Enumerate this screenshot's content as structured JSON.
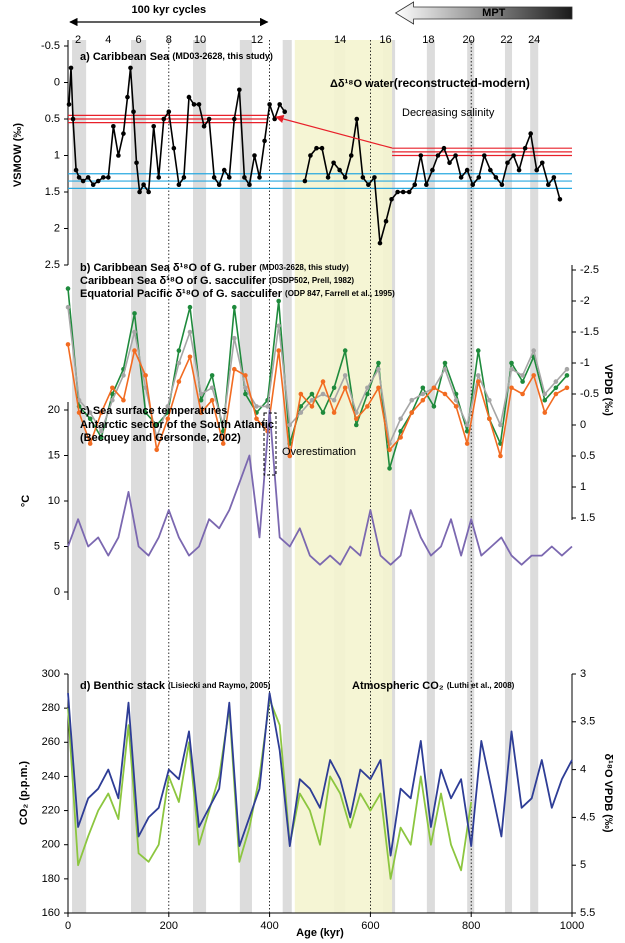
{
  "timescale": {
    "cycles_label": "100 kyr cycles",
    "cycles_range": [
      0,
      400
    ],
    "mpt_label": "MPT",
    "mpt_range": [
      650,
      1000
    ],
    "stages": [
      2,
      4,
      6,
      8,
      10,
      12,
      14,
      16,
      18,
      20,
      22,
      24
    ],
    "stage_ages": [
      20,
      80,
      140,
      200,
      262,
      375,
      540,
      630,
      715,
      795,
      870,
      925
    ],
    "glacial_bands": [
      [
        8,
        36
      ],
      [
        125,
        155
      ],
      [
        248,
        274
      ],
      [
        341,
        365
      ],
      [
        426,
        444
      ],
      [
        528,
        550
      ],
      [
        625,
        649
      ],
      [
        712,
        728
      ],
      [
        792,
        806
      ],
      [
        867,
        881
      ],
      [
        917,
        933
      ]
    ],
    "mpt_interval": [
      450,
      643
    ],
    "age_lines": [
      200,
      400,
      600,
      800
    ]
  },
  "chart_data": [
    {
      "type": "line",
      "panel": "a)",
      "title": "Caribbean Sea",
      "source": "(MD03-2628, this study)",
      "annotation": "Δδ¹⁸O water",
      "annotation_sub": "(reconstructed-modern)",
      "callout": "Decreasing salinity",
      "ylabel": "VSMOW (‰)",
      "ylim": [
        2.5,
        -0.5
      ],
      "yticks": [
        -0.5,
        0,
        0.5,
        1,
        1.5,
        2,
        2.5
      ],
      "color": "#000000",
      "markers": true,
      "x": [
        2,
        6,
        10,
        16,
        22,
        30,
        40,
        50,
        60,
        70,
        80,
        90,
        100,
        110,
        118,
        124,
        130,
        136,
        142,
        150,
        160,
        170,
        180,
        190,
        200,
        210,
        220,
        230,
        240,
        250,
        260,
        270,
        280,
        290,
        300,
        310,
        320,
        330,
        340,
        350,
        360,
        370,
        380,
        390,
        400,
        410,
        420,
        430,
        450,
        470,
        481,
        493,
        504,
        516,
        527,
        539,
        550,
        562,
        573,
        585,
        596,
        608,
        619,
        631,
        642,
        654,
        665,
        677,
        688,
        700,
        711,
        723,
        734,
        746,
        757,
        769,
        780,
        792,
        803,
        815,
        826,
        838,
        849,
        861,
        872,
        884,
        895,
        907,
        918,
        930,
        941,
        953,
        964,
        976
      ],
      "values": [
        0.3,
        -0.2,
        0.5,
        1.2,
        1.3,
        1.35,
        1.3,
        1.4,
        1.35,
        1.3,
        1.3,
        0.6,
        1.0,
        0.7,
        0.2,
        -0.2,
        0.4,
        1.1,
        1.5,
        1.4,
        1.5,
        0.6,
        1.3,
        0.5,
        0.4,
        0.9,
        1.4,
        1.3,
        0.2,
        0.3,
        0.3,
        0.6,
        0.5,
        1.3,
        1.4,
        1.2,
        1.3,
        0.5,
        0.1,
        1.3,
        1.4,
        1.0,
        1.3,
        0.8,
        0.3,
        0.5,
        0.3,
        0.4,
        null,
        1.35,
        1.0,
        0.9,
        0.9,
        1.3,
        1.1,
        1.2,
        1.3,
        1.0,
        0.5,
        1.3,
        1.4,
        1.3,
        2.2,
        1.9,
        1.6,
        1.5,
        1.5,
        1.5,
        1.4,
        1.0,
        1.4,
        1.2,
        1.0,
        0.9,
        1.1,
        1.0,
        1.3,
        1.2,
        1.4,
        1.3,
        1.0,
        1.2,
        1.3,
        1.4,
        1.1,
        1.0,
        1.2,
        0.9,
        0.7,
        1.2,
        1.1,
        1.4,
        1.3,
        1.6
      ],
      "reference_lines": [
        {
          "value": 0.45,
          "color": "#e8202a",
          "x": [
            0,
            397
          ]
        },
        {
          "value": 0.5,
          "color": "#e8202a",
          "x": [
            0,
            397
          ]
        },
        {
          "value": 0.55,
          "color": "#e8202a",
          "x": [
            0,
            397
          ]
        },
        {
          "value": 0.9,
          "color": "#e8202a",
          "x": [
            643,
            1000
          ]
        },
        {
          "value": 0.95,
          "color": "#e8202a",
          "x": [
            643,
            1000
          ]
        },
        {
          "value": 1.0,
          "color": "#e8202a",
          "x": [
            643,
            1000
          ]
        },
        {
          "value": 1.25,
          "color": "#29a9e0",
          "x": [
            0,
            1000
          ]
        },
        {
          "value": 1.35,
          "color": "#29a9e0",
          "x": [
            0,
            1000
          ]
        },
        {
          "value": 1.45,
          "color": "#29a9e0",
          "x": [
            0,
            1000
          ]
        }
      ]
    },
    {
      "type": "line",
      "panel": "b)",
      "markers": true,
      "ylabel": "VPDB (‰)",
      "ylim": [
        1.5,
        -2.5
      ],
      "yticks": [
        -2.5,
        -2,
        -1.5,
        -1,
        -0.5,
        0,
        0.5,
        1,
        1.5
      ],
      "x": [
        0,
        22,
        44,
        66,
        88,
        110,
        132,
        154,
        176,
        198,
        220,
        242,
        264,
        286,
        308,
        330,
        352,
        374,
        396,
        418,
        440,
        462,
        484,
        506,
        528,
        550,
        572,
        594,
        616,
        638,
        660,
        682,
        704,
        726,
        748,
        770,
        792,
        814,
        836,
        858,
        880,
        902,
        924,
        946,
        968,
        990
      ],
      "series": [
        {
          "name": "Caribbean Sea δ¹⁸O of G. ruber",
          "source": "(MD03-2628, this study)",
          "color": "#1e8a3c",
          "values": [
            -2.2,
            -0.3,
            -0.1,
            0.2,
            -0.5,
            -0.9,
            -1.8,
            -0.2,
            0.0,
            -0.2,
            -1.2,
            -1.9,
            -0.4,
            -0.8,
            0.1,
            -1.9,
            -0.5,
            -0.2,
            -0.4,
            -2.0,
            0.3,
            -0.3,
            -0.5,
            -0.2,
            -0.6,
            -1.2,
            0.0,
            -0.5,
            -1.0,
            0.7,
            0.1,
            -0.2,
            -0.6,
            -0.3,
            -1.0,
            -0.5,
            0.1,
            -1.2,
            -0.1,
            0.3,
            -1.0,
            -0.7,
            -1.1,
            -0.4,
            -0.6,
            -0.8
          ]
        },
        {
          "name": "Caribbean Sea δ¹⁸O of G. sacculifer",
          "source": "(DSDP502, Prell, 1982)",
          "color": "#a6a6a6",
          "values": [
            -1.9,
            -0.4,
            -0.2,
            0.1,
            -0.4,
            -0.8,
            -1.5,
            -0.6,
            0.2,
            -0.3,
            -1.0,
            -1.5,
            -0.5,
            -0.6,
            0.0,
            -1.4,
            -0.6,
            -0.3,
            -0.3,
            -1.6,
            0.0,
            -0.2,
            -0.4,
            -0.5,
            -0.4,
            -0.8,
            -0.2,
            -0.6,
            -0.9,
            0.3,
            -0.1,
            -0.4,
            -0.5,
            -0.6,
            -0.9,
            -0.4,
            0.0,
            -0.8,
            -0.4,
            0.0,
            -0.9,
            -0.8,
            -1.2,
            -0.5,
            -0.7,
            -0.9
          ]
        },
        {
          "name": "Equatorial Pacific δ¹⁸O of G. sacculifer",
          "source": "(ODP 847, Farrell et al., 1995)",
          "color": "#f26b21",
          "values": [
            -1.3,
            -0.2,
            0.3,
            -0.2,
            -0.6,
            -0.4,
            -1.2,
            -0.8,
            0.4,
            -0.1,
            -0.7,
            -1.1,
            -0.2,
            -0.4,
            0.3,
            -0.9,
            -0.8,
            -0.1,
            0.1,
            -1.2,
            0.5,
            -0.5,
            -0.3,
            -0.7,
            -0.2,
            -0.6,
            -0.1,
            -0.3,
            -0.6,
            0.4,
            0.2,
            -0.2,
            -0.4,
            -0.6,
            -0.5,
            -0.3,
            0.3,
            -0.7,
            -0.1,
            0.5,
            -0.6,
            -0.5,
            -0.8,
            -0.2,
            -0.5,
            -0.6
          ]
        }
      ]
    },
    {
      "type": "line",
      "panel": "c)",
      "title": "Sea surface temperatures",
      "callout": "Overestimation",
      "ylabel": "°C",
      "ylim": [
        0,
        20
      ],
      "yticks": [
        0,
        5,
        10,
        15,
        20
      ],
      "x": [
        0,
        20,
        40,
        60,
        80,
        100,
        120,
        140,
        160,
        180,
        200,
        220,
        240,
        260,
        280,
        300,
        320,
        340,
        360,
        380,
        400,
        420,
        440,
        460,
        480,
        500,
        520,
        540,
        560,
        580,
        600,
        620,
        640,
        660,
        680,
        700,
        720,
        740,
        760,
        780,
        800,
        820,
        840,
        860,
        880,
        900,
        920,
        940,
        960,
        980,
        1000
      ],
      "series": [
        {
          "name": "Antarctic sector of the South Atlantic",
          "source": "(Becquey and Gersonde, 2002)",
          "color": "#7b68b0",
          "values": [
            5,
            8,
            5,
            6,
            4,
            6,
            11,
            5,
            4,
            6,
            9,
            6,
            4,
            5,
            8,
            7,
            9,
            12,
            15,
            6,
            20,
            6,
            5,
            7,
            4,
            3,
            4,
            3,
            5,
            4,
            9,
            4,
            3,
            4,
            9,
            6,
            4,
            5,
            8,
            4,
            8,
            4,
            5,
            6,
            4,
            3,
            4,
            4,
            5,
            4,
            5
          ]
        }
      ]
    },
    {
      "type": "line",
      "panel": "d)",
      "ylabel": "CO₂ (p.p.m.)",
      "ylim": [
        160,
        300
      ],
      "yticks": [
        160,
        180,
        200,
        220,
        240,
        260,
        280,
        300
      ],
      "y2label": "δ¹⁸O VPDB (‰)",
      "y2lim": [
        5.5,
        3
      ],
      "y2ticks": [
        3,
        3.5,
        4,
        4.5,
        5,
        5.5
      ],
      "xlabel": "Age (kyr)",
      "xlim": [
        0,
        1000
      ],
      "xticks": [
        0,
        200,
        400,
        600,
        800,
        1000
      ],
      "series": [
        {
          "name": "Benthic stack",
          "source": "(Lisiecki and Raymo, 2005)",
          "color": "#2e3d96",
          "axis": "y2",
          "x": [
            0,
            20,
            40,
            60,
            80,
            100,
            120,
            140,
            160,
            180,
            200,
            220,
            240,
            260,
            280,
            300,
            320,
            340,
            360,
            380,
            400,
            420,
            440,
            460,
            480,
            500,
            520,
            540,
            560,
            580,
            600,
            620,
            640,
            660,
            680,
            700,
            720,
            740,
            760,
            780,
            800,
            820,
            840,
            860,
            880,
            900,
            920,
            940,
            960,
            980,
            1000
          ],
          "values": [
            3.2,
            4.6,
            4.3,
            4.2,
            4.0,
            4.3,
            3.3,
            4.7,
            4.5,
            4.4,
            4.0,
            4.1,
            3.6,
            4.6,
            4.4,
            4.2,
            3.3,
            4.8,
            4.5,
            4.2,
            3.2,
            3.8,
            4.8,
            4.1,
            4.2,
            4.4,
            3.9,
            4.1,
            4.5,
            4.0,
            4.1,
            3.9,
            4.9,
            4.2,
            4.3,
            3.7,
            4.6,
            4.0,
            4.3,
            4.1,
            4.8,
            3.7,
            4.2,
            4.7,
            3.6,
            4.4,
            4.3,
            3.9,
            4.4,
            4.1,
            3.9
          ]
        },
        {
          "name": "Atmospheric CO₂",
          "source": "(Luthi et al., 2008)",
          "color": "#8cc63f",
          "x": [
            0,
            20,
            40,
            60,
            80,
            100,
            120,
            140,
            160,
            180,
            200,
            220,
            240,
            260,
            280,
            300,
            320,
            340,
            360,
            380,
            400,
            420,
            440,
            460,
            480,
            500,
            520,
            540,
            560,
            580,
            600,
            620,
            640,
            660,
            680,
            700,
            720,
            740,
            760,
            780,
            800
          ],
          "values": [
            280,
            188,
            205,
            220,
            230,
            215,
            270,
            195,
            190,
            200,
            240,
            225,
            260,
            200,
            220,
            240,
            280,
            190,
            210,
            240,
            285,
            270,
            200,
            230,
            220,
            200,
            240,
            230,
            210,
            230,
            220,
            230,
            180,
            210,
            200,
            240,
            200,
            230,
            200,
            185,
            225
          ]
        }
      ]
    }
  ]
}
